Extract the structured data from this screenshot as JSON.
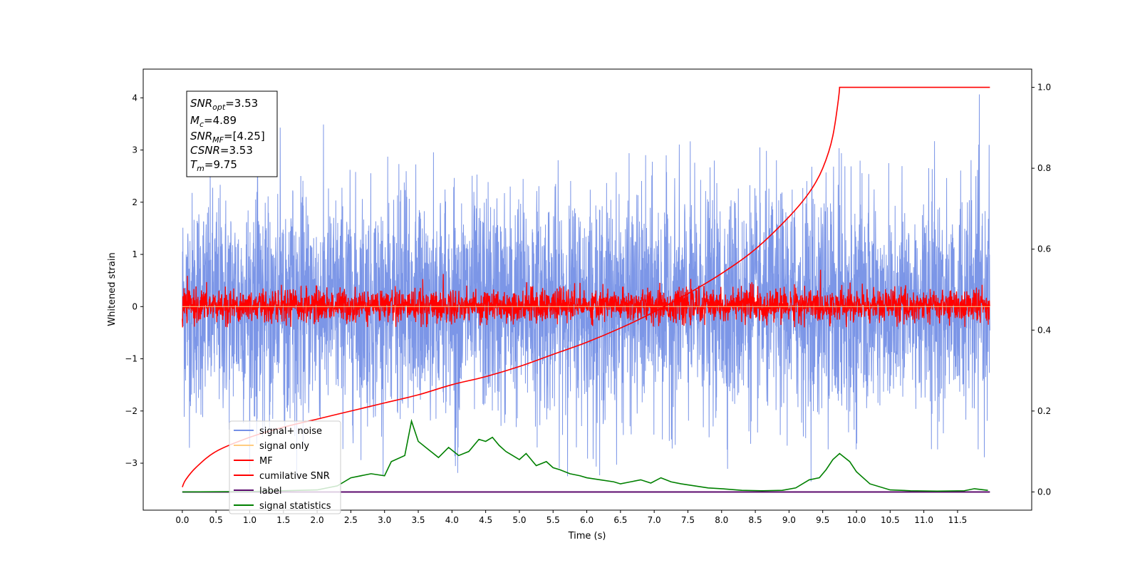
{
  "chart_data": {
    "type": "line",
    "xlabel": "Time (s)",
    "ylabel": "Whitened strain",
    "xlim": [
      -0.58,
      12.6
    ],
    "ylim": [
      -3.9,
      4.55
    ],
    "y2lim": [
      -0.045,
      1.045
    ],
    "x_ticks": [
      "0.0",
      "0.5",
      "1.0",
      "1.5",
      "2.0",
      "2.5",
      "3.0",
      "3.5",
      "4.0",
      "4.5",
      "5.0",
      "5.5",
      "6.0",
      "6.5",
      "7.0",
      "7.5",
      "8.0",
      "8.5",
      "9.0",
      "9.5",
      "10.0",
      "10.5",
      "11.0",
      "11.5"
    ],
    "y_ticks": [
      "4",
      "3",
      "2",
      "1",
      "0",
      "−1",
      "−2",
      "−3"
    ],
    "y2_ticks": [
      "1.0",
      "0.8",
      "0.6",
      "0.4",
      "0.2",
      "0.0"
    ],
    "annotation": {
      "snr_opt": "=3.53",
      "mc": "=4.89",
      "snr_mf": "=[4.25]",
      "csnr": "=3.53",
      "tm": "=9.75"
    },
    "legend": {
      "placement": "lower-left",
      "entries": [
        {
          "label": "signal+ noise",
          "color": "#7590e6"
        },
        {
          "label": "signal only",
          "color": "#ffcc80"
        },
        {
          "label": "MF",
          "color": "#ff0000"
        },
        {
          "label": "cumilative SNR",
          "color": "#ff0000"
        },
        {
          "label": "label",
          "color": "#5b0a6e"
        },
        {
          "label": "signal statistics",
          "color": "#008000"
        }
      ]
    },
    "series": [
      {
        "name": "signal+ noise",
        "axis": "left",
        "x_range": [
          0,
          11.98
        ],
        "y_range": [
          -3.4,
          4.2
        ],
        "color": "#7590e6"
      },
      {
        "name": "signal only",
        "axis": "left",
        "x_range": [
          0,
          11.98
        ],
        "values": 0,
        "color": "#ffcc80"
      },
      {
        "name": "MF",
        "axis": "left",
        "x_range": [
          0,
          11.98
        ],
        "y_range": [
          -0.4,
          0.95
        ],
        "color": "#ff0000"
      },
      {
        "name": "cumilative SNR",
        "axis": "right",
        "color": "#ff0000",
        "x": [
          0,
          0.05,
          0.2,
          0.5,
          1.0,
          1.5,
          2.0,
          2.5,
          3.0,
          3.5,
          4.0,
          4.5,
          5.0,
          5.5,
          6.0,
          6.5,
          7.0,
          7.5,
          8.0,
          8.5,
          9.0,
          9.3,
          9.5,
          9.65,
          9.75,
          11.98
        ],
        "y": [
          0.012,
          0.03,
          0.06,
          0.1,
          0.135,
          0.16,
          0.18,
          0.2,
          0.22,
          0.24,
          0.265,
          0.285,
          0.31,
          0.34,
          0.37,
          0.405,
          0.445,
          0.49,
          0.54,
          0.6,
          0.68,
          0.74,
          0.8,
          0.88,
          1.0,
          1.0
        ]
      },
      {
        "name": "label",
        "axis": "right",
        "x": [
          0,
          11.98
        ],
        "y": [
          0.0,
          0.0
        ],
        "color": "#5b0a6e"
      },
      {
        "name": "signal statistics",
        "axis": "right",
        "color": "#008000",
        "x": [
          0,
          1.0,
          2.0,
          2.3,
          2.5,
          2.8,
          3.0,
          3.1,
          3.3,
          3.4,
          3.5,
          3.65,
          3.8,
          3.95,
          4.1,
          4.25,
          4.4,
          4.5,
          4.6,
          4.7,
          4.8,
          4.9,
          5.0,
          5.1,
          5.25,
          5.4,
          5.5,
          5.6,
          5.75,
          5.9,
          6.0,
          6.2,
          6.4,
          6.5,
          6.65,
          6.8,
          6.95,
          7.1,
          7.25,
          7.4,
          7.6,
          7.8,
          8.0,
          8.3,
          8.6,
          8.9,
          9.1,
          9.3,
          9.45,
          9.55,
          9.65,
          9.75,
          9.9,
          10.0,
          10.2,
          10.5,
          10.8,
          11.2,
          11.6,
          11.75,
          11.95
        ],
        "y": [
          0.0,
          0.001,
          0.005,
          0.015,
          0.035,
          0.045,
          0.04,
          0.075,
          0.09,
          0.175,
          0.125,
          0.105,
          0.085,
          0.11,
          0.09,
          0.1,
          0.13,
          0.125,
          0.135,
          0.115,
          0.1,
          0.09,
          0.08,
          0.095,
          0.065,
          0.075,
          0.06,
          0.055,
          0.045,
          0.04,
          0.035,
          0.03,
          0.025,
          0.02,
          0.025,
          0.03,
          0.022,
          0.035,
          0.025,
          0.02,
          0.015,
          0.01,
          0.008,
          0.004,
          0.003,
          0.004,
          0.01,
          0.03,
          0.035,
          0.055,
          0.08,
          0.095,
          0.075,
          0.05,
          0.02,
          0.005,
          0.003,
          0.002,
          0.003,
          0.008,
          0.004
        ]
      }
    ]
  }
}
